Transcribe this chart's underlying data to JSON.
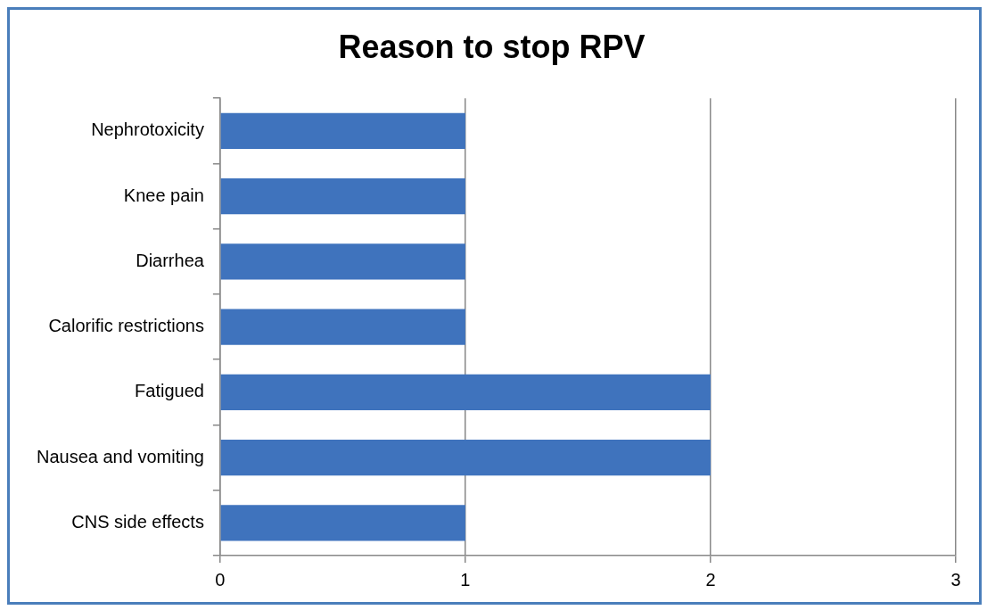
{
  "chart_data": {
    "type": "bar",
    "title": "Reason to stop RPV",
    "orientation": "horizontal",
    "categories": [
      "Nephrotoxicity",
      "Knee pain",
      "Diarrhea",
      "Calorific restrictions",
      "Fatigued",
      "Nausea and vomiting",
      "CNS side effects"
    ],
    "values": [
      1,
      1,
      1,
      1,
      2,
      2,
      1
    ],
    "color": "#3f73bd",
    "xlim": [
      0,
      3
    ],
    "xticks": [
      0,
      1,
      2,
      3
    ],
    "grid": "x",
    "legend": false
  }
}
